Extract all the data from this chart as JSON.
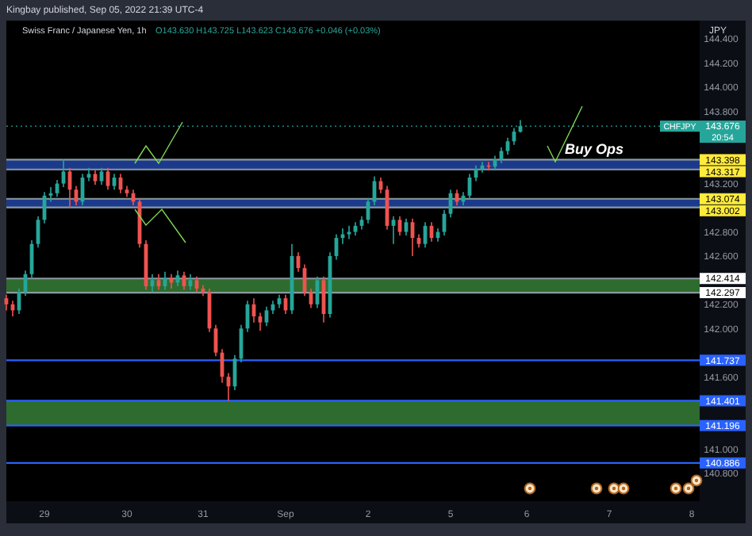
{
  "chart_data": {
    "type": "candlestick",
    "title": "Swiss Franc / Japanese Yen, 1h",
    "subtitle": "O143.630 H143.725 L143.623 C143.676 +0.046 (+0.03%)",
    "ylabel": "JPY",
    "annotations": [
      "Kingbay published, Sep 05, 2022 21:39 UTC-4",
      "Buy Ops",
      "20:54",
      "CHFJPY"
    ],
    "categories": [
      null,
      null,
      null,
      null,
      null,
      null,
      "29",
      null,
      null,
      null,
      null,
      null,
      null,
      null,
      null,
      null,
      null,
      null,
      null,
      "30",
      null,
      null,
      null,
      null,
      null,
      null,
      null,
      null,
      null,
      null,
      null,
      "31",
      null,
      null,
      null,
      null,
      null,
      null,
      null,
      null,
      null,
      null,
      null,
      null,
      "Sep",
      null,
      null,
      null,
      null,
      null,
      null,
      null,
      null,
      null,
      null,
      null,
      null,
      "2",
      null,
      null,
      null,
      null,
      null,
      null,
      null,
      null,
      null,
      null,
      null,
      null,
      "5",
      null,
      null,
      null,
      null,
      null,
      null,
      null,
      null,
      null,
      null,
      null,
      "6",
      null,
      null,
      null,
      null,
      null,
      null,
      null,
      null,
      null,
      null,
      null,
      null,
      "7",
      null,
      null,
      null,
      null,
      null,
      null,
      null,
      null,
      null,
      null,
      null,
      null,
      "8",
      null
    ],
    "ohlc": [
      [
        142.25,
        142.28,
        142.15,
        142.2
      ],
      [
        142.2,
        142.23,
        142.1,
        142.15
      ],
      [
        142.15,
        142.33,
        142.12,
        142.3
      ],
      [
        142.3,
        142.48,
        142.27,
        142.45
      ],
      [
        142.45,
        142.73,
        142.42,
        142.7
      ],
      [
        142.7,
        142.93,
        142.67,
        142.9
      ],
      [
        142.9,
        143.13,
        142.87,
        143.1
      ],
      [
        143.1,
        143.17,
        143.05,
        143.12
      ],
      [
        143.12,
        143.23,
        143.09,
        143.2
      ],
      [
        143.2,
        143.4,
        143.17,
        143.3
      ],
      [
        143.3,
        143.33,
        143.0,
        143.15
      ],
      [
        143.15,
        143.18,
        143.02,
        143.05
      ],
      [
        143.05,
        143.28,
        143.02,
        143.25
      ],
      [
        143.25,
        143.33,
        143.22,
        143.28
      ],
      [
        143.28,
        143.31,
        143.19,
        143.22
      ],
      [
        143.22,
        143.33,
        143.19,
        143.3
      ],
      [
        143.3,
        143.33,
        143.15,
        143.18
      ],
      [
        143.18,
        143.28,
        143.15,
        143.25
      ],
      [
        143.25,
        143.28,
        143.12,
        143.15
      ],
      [
        143.15,
        143.18,
        143.09,
        143.12
      ],
      [
        143.12,
        143.15,
        143.02,
        143.05
      ],
      [
        143.05,
        143.08,
        142.67,
        142.7
      ],
      [
        142.7,
        142.73,
        142.32,
        142.35
      ],
      [
        142.35,
        142.45,
        142.3,
        142.4
      ],
      [
        142.4,
        142.45,
        142.32,
        142.35
      ],
      [
        142.35,
        142.47,
        142.32,
        142.42
      ],
      [
        142.42,
        142.45,
        142.33,
        142.38
      ],
      [
        142.38,
        142.48,
        142.35,
        142.44
      ],
      [
        142.44,
        142.47,
        142.32,
        142.35
      ],
      [
        142.35,
        142.45,
        142.32,
        142.4
      ],
      [
        142.4,
        142.43,
        142.3,
        142.33
      ],
      [
        142.33,
        142.36,
        142.27,
        142.3
      ],
      [
        142.3,
        142.33,
        141.97,
        142.0
      ],
      [
        142.0,
        142.03,
        141.77,
        141.8
      ],
      [
        141.8,
        141.83,
        141.55,
        141.6
      ],
      [
        141.6,
        141.63,
        141.4,
        141.52
      ],
      [
        141.52,
        141.78,
        141.49,
        141.75
      ],
      [
        141.75,
        142.03,
        141.72,
        142.0
      ],
      [
        142.0,
        142.23,
        141.97,
        142.2
      ],
      [
        142.2,
        142.25,
        142.05,
        142.1
      ],
      [
        142.1,
        142.13,
        141.98,
        142.05
      ],
      [
        142.05,
        142.18,
        142.02,
        142.15
      ],
      [
        142.15,
        142.23,
        142.12,
        142.2
      ],
      [
        142.2,
        142.28,
        142.17,
        142.25
      ],
      [
        142.25,
        142.28,
        142.12,
        142.15
      ],
      [
        142.15,
        142.7,
        142.12,
        142.6
      ],
      [
        142.6,
        142.63,
        142.47,
        142.5
      ],
      [
        142.5,
        142.53,
        142.27,
        142.3
      ],
      [
        142.3,
        142.33,
        142.17,
        142.2
      ],
      [
        142.2,
        142.43,
        142.17,
        142.4
      ],
      [
        142.4,
        142.43,
        142.05,
        142.12
      ],
      [
        142.12,
        142.63,
        142.09,
        142.6
      ],
      [
        142.6,
        142.78,
        142.57,
        142.75
      ],
      [
        142.75,
        142.83,
        142.7,
        142.78
      ],
      [
        142.78,
        142.85,
        142.74,
        142.8
      ],
      [
        142.8,
        142.88,
        142.77,
        142.85
      ],
      [
        142.85,
        142.93,
        142.82,
        142.9
      ],
      [
        142.9,
        143.08,
        142.87,
        143.05
      ],
      [
        143.05,
        143.26,
        143.02,
        143.22
      ],
      [
        143.22,
        143.25,
        143.12,
        143.15
      ],
      [
        143.15,
        143.18,
        142.82,
        142.85
      ],
      [
        142.85,
        142.93,
        142.7,
        142.9
      ],
      [
        142.9,
        142.93,
        142.77,
        142.8
      ],
      [
        142.8,
        142.91,
        142.77,
        142.88
      ],
      [
        142.88,
        142.91,
        142.6,
        142.75
      ],
      [
        142.75,
        142.78,
        142.67,
        142.7
      ],
      [
        142.7,
        142.88,
        142.67,
        142.85
      ],
      [
        142.85,
        142.88,
        142.72,
        142.75
      ],
      [
        142.75,
        142.83,
        142.72,
        142.8
      ],
      [
        142.8,
        142.98,
        142.77,
        142.95
      ],
      [
        142.95,
        143.15,
        142.92,
        143.12
      ],
      [
        143.12,
        143.15,
        143.02,
        143.05
      ],
      [
        143.05,
        143.13,
        143.02,
        143.1
      ],
      [
        143.1,
        143.28,
        143.07,
        143.25
      ],
      [
        143.25,
        143.35,
        143.22,
        143.32
      ],
      [
        143.32,
        143.38,
        143.29,
        143.35
      ],
      [
        143.35,
        143.38,
        143.31,
        143.34
      ],
      [
        143.34,
        143.43,
        143.31,
        143.4
      ],
      [
        143.4,
        143.5,
        143.37,
        143.47
      ],
      [
        143.47,
        143.58,
        143.44,
        143.55
      ],
      [
        143.55,
        143.66,
        143.52,
        143.63
      ],
      [
        143.63,
        143.725,
        143.623,
        143.676
      ],
      null,
      null,
      null,
      null,
      null,
      null,
      null,
      null,
      null,
      null,
      null,
      null,
      null,
      null,
      null,
      null,
      null,
      null,
      null,
      null,
      null,
      null,
      null,
      null,
      null,
      null,
      null,
      null
    ],
    "ylim": [
      140.57,
      144.55
    ],
    "yticks": [
      {
        "value": 140.8,
        "label": "140.800"
      },
      {
        "value": 141,
        "label": "141.000"
      },
      {
        "value": 141.6,
        "label": "141.600"
      },
      {
        "value": 142,
        "label": "142.000"
      },
      {
        "value": 142.2,
        "label": "142.200"
      },
      {
        "value": 142.6,
        "label": "142.600"
      },
      {
        "value": 142.8,
        "label": "142.800"
      },
      {
        "value": 143.2,
        "label": "143.200"
      },
      {
        "value": 143.8,
        "label": "143.800"
      },
      {
        "value": 144,
        "label": "144.000"
      },
      {
        "value": 144.2,
        "label": "144.200"
      },
      {
        "value": 144.4,
        "label": "144.400"
      }
    ],
    "bands": [
      {
        "axis": "y",
        "from": 143.317,
        "to": 143.398,
        "color": "#1c3a8c"
      },
      {
        "axis": "y",
        "from": 143.002,
        "to": 143.074,
        "color": "#1c3a8c"
      },
      {
        "axis": "y",
        "from": 142.297,
        "to": 142.414,
        "color": "#2e6b2e"
      },
      {
        "axis": "y",
        "from": 141.196,
        "to": 141.401,
        "color": "#2e6b2e"
      }
    ],
    "ref_lines": [
      {
        "axis": "y",
        "value": 143.398,
        "label": "143.398",
        "color": "#8a9aa0",
        "line_style": "solid"
      },
      {
        "axis": "y",
        "value": 143.317,
        "label": "143.317",
        "color": "#8a9aa0",
        "line_style": "solid"
      },
      {
        "axis": "y",
        "value": 143.074,
        "label": "143.074",
        "color": "#8a9aa0",
        "line_style": "solid"
      },
      {
        "axis": "y",
        "value": 143.002,
        "label": "143.002",
        "color": "#8a9aa0",
        "line_style": "solid"
      },
      {
        "axis": "y",
        "value": 142.414,
        "label": "142.414",
        "color": "#8a9aa0",
        "line_style": "solid"
      },
      {
        "axis": "y",
        "value": 142.297,
        "label": "142.297",
        "color": "#8a9aa0",
        "line_style": "solid"
      },
      {
        "axis": "y",
        "value": 141.737,
        "label": "141.737",
        "color": "#2962ff",
        "line_style": "solid"
      },
      {
        "axis": "y",
        "value": 141.401,
        "label": "141.401",
        "color": "#2962ff",
        "line_style": "solid"
      },
      {
        "axis": "y",
        "value": 141.196,
        "label": "141.196",
        "color": "#2962ff",
        "line_style": "solid"
      },
      {
        "axis": "y",
        "value": 140.886,
        "label": "140.886",
        "color": "#2962ff",
        "line_style": "solid"
      },
      {
        "axis": "y",
        "value": 143.676,
        "label": "143.676",
        "color": "#26a69a",
        "line_style": "dotted"
      }
    ],
    "grid": false
  }
}
